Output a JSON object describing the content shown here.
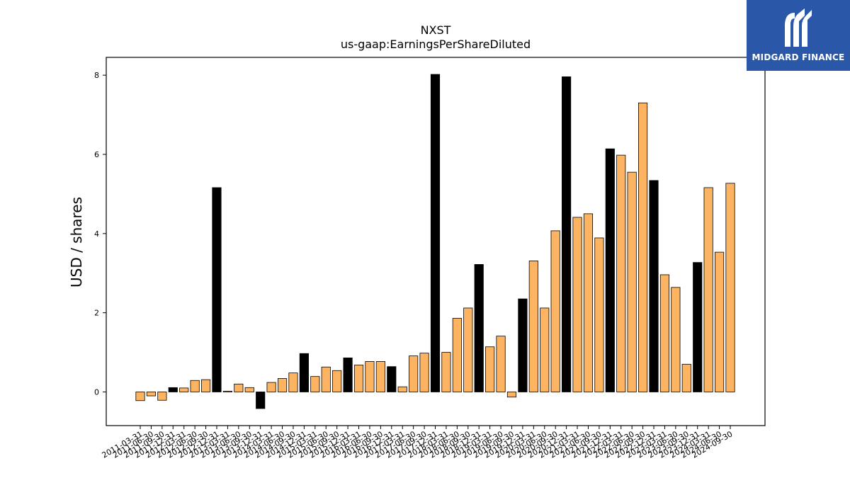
{
  "brand": {
    "name": "MIDGARD FINANCE",
    "color": "#2a57a7"
  },
  "chart_data": {
    "type": "bar",
    "title": "NXST",
    "subtitle": "us-gaap:EarningsPerShareDiluted",
    "ylabel": "USD / shares",
    "ylim": [
      -0.85,
      8.45
    ],
    "yticks": [
      0,
      2,
      4,
      6,
      8
    ],
    "grid": false,
    "colors": {
      "quarterly": "#fdb462",
      "annual": "#000000"
    },
    "categories": [
      "2011-03-31",
      "2011-06-30",
      "2011-09-30",
      "2011-12-31",
      "2012-03-31",
      "2012-06-30",
      "2012-09-30",
      "2012-12-31",
      "2013-03-31",
      "2013-06-30",
      "2013-09-30",
      "2013-12-31",
      "2014-03-31",
      "2014-06-30",
      "2014-09-30",
      "2014-12-31",
      "2015-03-31",
      "2015-06-30",
      "2015-09-30",
      "2015-12-31",
      "2016-03-31",
      "2016-06-30",
      "2016-09-30",
      "2016-12-31",
      "2017-03-31",
      "2017-06-30",
      "2017-09-30",
      "2017-12-31",
      "2018-03-31",
      "2018-06-30",
      "2018-09-30",
      "2018-12-31",
      "2019-03-31",
      "2019-06-30",
      "2019-09-30",
      "2019-12-31",
      "2020-03-31",
      "2020-06-30",
      "2020-09-30",
      "2020-12-31",
      "2021-03-31",
      "2021-06-30",
      "2021-09-30",
      "2021-12-31",
      "2022-03-31",
      "2022-06-30",
      "2022-09-30",
      "2022-12-31",
      "2023-03-31",
      "2023-06-30",
      "2023-09-30",
      "2023-12-31",
      "2024-03-31",
      "2024-06-30",
      "2024-09-30"
    ],
    "values": [
      -0.22,
      -0.1,
      -0.21,
      0.11,
      0.1,
      0.29,
      0.31,
      5.16,
      0.02,
      0.2,
      0.11,
      -0.42,
      0.24,
      0.34,
      0.48,
      0.97,
      0.39,
      0.63,
      0.54,
      0.86,
      0.68,
      0.77,
      0.77,
      0.64,
      0.13,
      0.91,
      0.98,
      8.02,
      1.0,
      1.86,
      2.12,
      3.22,
      1.14,
      1.41,
      -0.13,
      2.35,
      3.31,
      2.12,
      4.07,
      7.96,
      4.41,
      4.5,
      3.89,
      6.14,
      5.98,
      5.55,
      7.3,
      5.34,
      2.96,
      2.64,
      0.7,
      3.27,
      5.16,
      3.53,
      5.27
    ],
    "annual": [
      false,
      false,
      false,
      true,
      false,
      false,
      false,
      true,
      false,
      false,
      false,
      true,
      false,
      false,
      false,
      true,
      false,
      false,
      false,
      true,
      false,
      false,
      false,
      true,
      false,
      false,
      false,
      true,
      false,
      false,
      false,
      true,
      false,
      false,
      false,
      true,
      false,
      false,
      false,
      true,
      false,
      false,
      false,
      true,
      false,
      false,
      false,
      true,
      false,
      false,
      false,
      true,
      false,
      false,
      false
    ]
  }
}
